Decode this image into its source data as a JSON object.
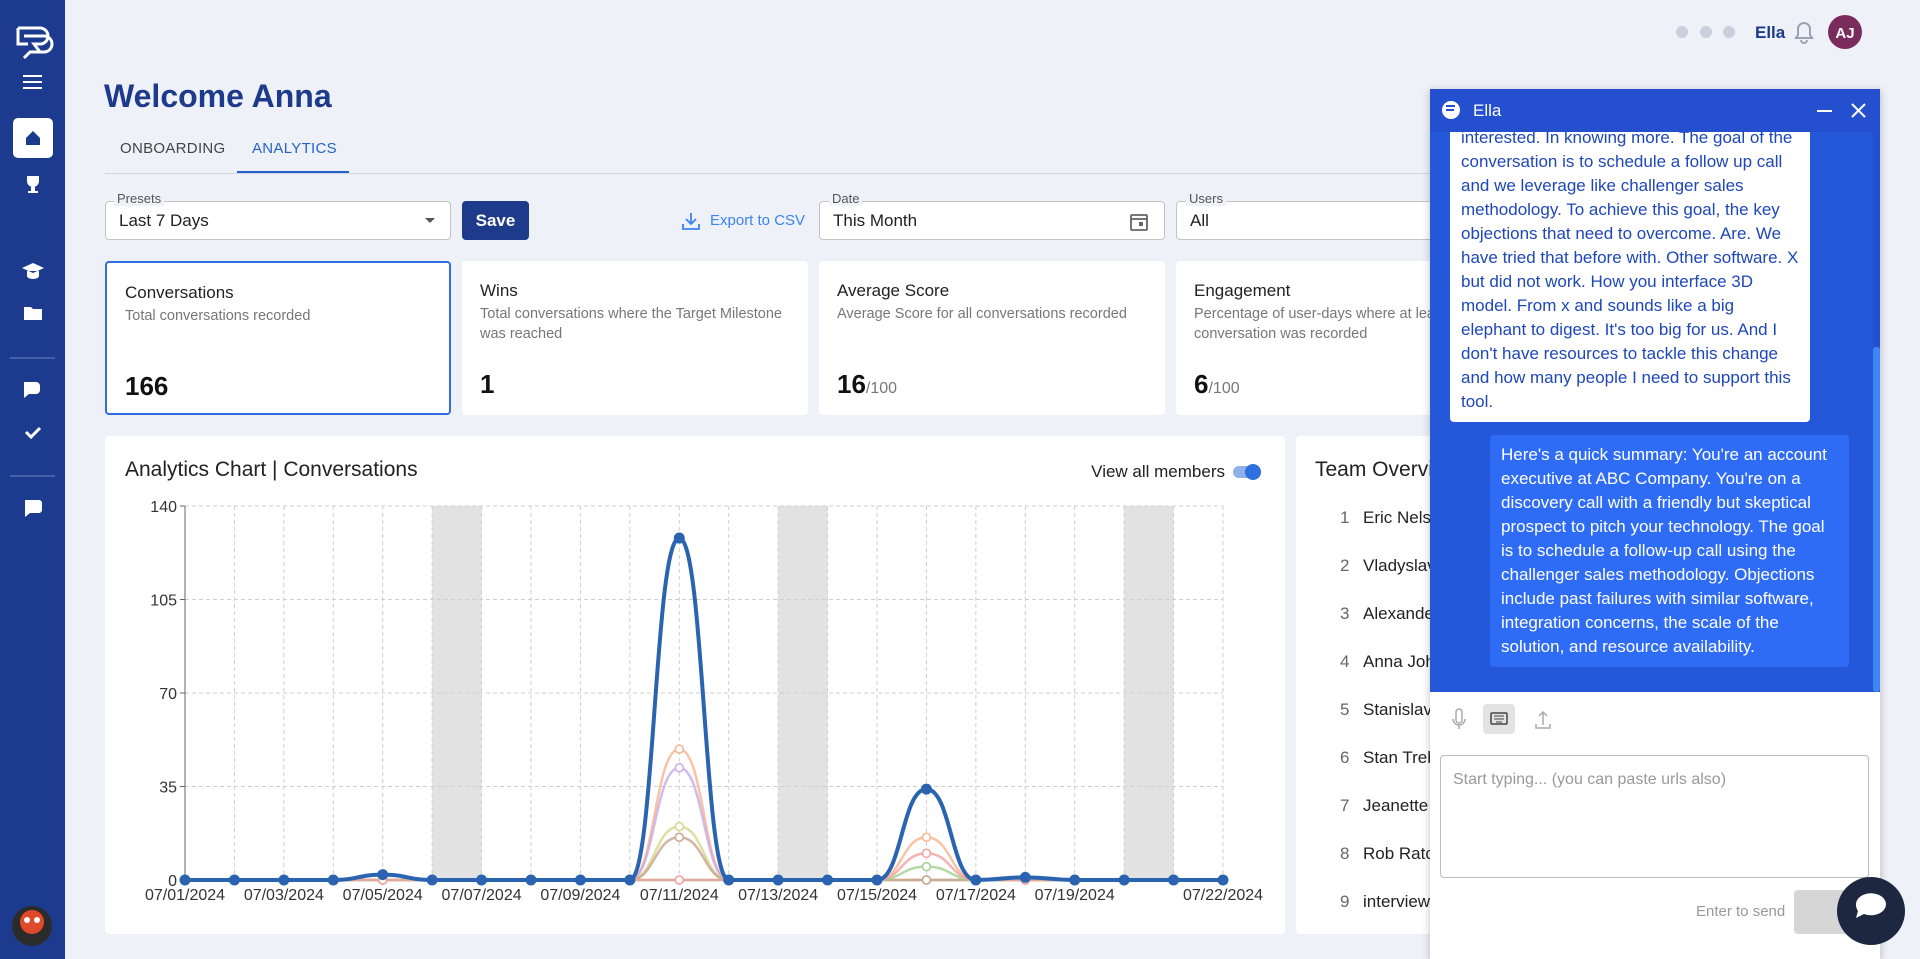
{
  "topbar": {
    "assistant": "Ella",
    "avatar": "AJ"
  },
  "header": {
    "title": "Welcome Anna",
    "tabs": [
      "ONBOARDING",
      "ANALYTICS"
    ]
  },
  "filters": {
    "presets_label": "Presets",
    "presets_value": "Last 7 Days",
    "save": "Save",
    "export": "Export to CSV",
    "date_label": "Date",
    "date_value": "This Month",
    "users_label": "Users",
    "users_value": "All"
  },
  "cards": [
    {
      "title": "Conversations",
      "description": "Total conversations recorded",
      "value": 166
    },
    {
      "title": "Wins",
      "description": "Total conversations where the Target Milestone was reached",
      "value": 1
    },
    {
      "title": "Average Score",
      "description": "Average Score for all conversations recorded",
      "value": 16,
      "suffix": "/100"
    },
    {
      "title": "Engagement",
      "description": "Percentage of user-days where at least one conversation was recorded",
      "value": 6,
      "suffix": "/100"
    }
  ],
  "chart_panel": {
    "toggle": "View all members"
  },
  "chart_data": {
    "type": "line",
    "title": "Analytics Chart | Conversations",
    "x": [
      "07/01/2024",
      "07/02/2024",
      "07/03/2024",
      "07/04/2024",
      "07/05/2024",
      "07/06/2024",
      "07/07/2024",
      "07/08/2024",
      "07/09/2024",
      "07/10/2024",
      "07/11/2024",
      "07/12/2024",
      "07/13/2024",
      "07/14/2024",
      "07/15/2024",
      "07/16/2024",
      "07/17/2024",
      "07/18/2024",
      "07/19/2024",
      "07/20/2024",
      "07/21/2024",
      "07/22/2024"
    ],
    "xlim": [
      "07/01/2024",
      "07/22/2024"
    ],
    "xticks": [
      "07/01/2024",
      "07/03/2024",
      "07/05/2024",
      "07/07/2024",
      "07/09/2024",
      "07/11/2024",
      "07/13/2024",
      "07/15/2024",
      "07/17/2024",
      "07/19/2024",
      "07/22/2024"
    ],
    "ylim": [
      0,
      140
    ],
    "yticks": [
      0,
      35,
      70,
      105,
      140
    ],
    "grid": true,
    "series": [
      {
        "color": "#2a64b0",
        "values": [
          0,
          0,
          0,
          0,
          2,
          0,
          0,
          0,
          0,
          0,
          128,
          0,
          0,
          0,
          0,
          34,
          0,
          1,
          0,
          0,
          0,
          0
        ]
      },
      {
        "color": "#f6b48f",
        "values": [
          0,
          0,
          0,
          0,
          0,
          0,
          0,
          0,
          0,
          0,
          49,
          0,
          0,
          0,
          0,
          16,
          0,
          0,
          0,
          0,
          0,
          0
        ]
      },
      {
        "color": "#c9a9e6",
        "values": [
          0,
          0,
          0,
          0,
          0,
          0,
          0,
          0,
          0,
          0,
          42,
          0,
          0,
          0,
          0,
          0,
          0,
          0,
          0,
          0,
          0,
          0
        ]
      },
      {
        "color": "#d4d68a",
        "values": [
          0,
          0,
          0,
          0,
          0,
          0,
          0,
          0,
          0,
          0,
          20,
          0,
          0,
          0,
          0,
          0,
          0,
          0,
          0,
          0,
          0,
          0
        ]
      },
      {
        "color": "#c8a48c",
        "values": [
          0,
          0,
          0,
          0,
          0,
          0,
          0,
          0,
          0,
          0,
          16,
          0,
          0,
          0,
          0,
          0,
          0,
          0,
          0,
          0,
          0,
          0
        ]
      },
      {
        "color": "#9fcf8e",
        "values": [
          0,
          0,
          0,
          0,
          0,
          0,
          0,
          0,
          0,
          0,
          0,
          0,
          0,
          0,
          0,
          5,
          0,
          0,
          0,
          0,
          0,
          0
        ]
      },
      {
        "color": "#f3a0a0",
        "values": [
          0,
          0,
          0,
          0,
          0,
          0,
          0,
          0,
          0,
          0,
          0,
          0,
          0,
          0,
          0,
          10,
          0,
          0,
          0,
          0,
          0,
          0
        ]
      }
    ]
  },
  "team": {
    "title": "Team Overview",
    "members": [
      {
        "rank": 1,
        "name": "Eric Nelso"
      },
      {
        "rank": 2,
        "name": "Vladyslav"
      },
      {
        "rank": 3,
        "name": "Alexande"
      },
      {
        "rank": 4,
        "name": "Anna Joh"
      },
      {
        "rank": 5,
        "name": "Stanislav"
      },
      {
        "rank": 6,
        "name": "Stan Treb"
      },
      {
        "rank": 7,
        "name": "Jeanette"
      },
      {
        "rank": 8,
        "name": "Rob Ratc"
      },
      {
        "rank": 9,
        "name": "interview"
      }
    ]
  },
  "chat": {
    "title": "Ella",
    "messages": [
      {
        "role": "assistant",
        "text": "prospect who's skeptical but friendly and interested. In knowing more. The goal of the conversation is to schedule a follow up call and we leverage like challenger sales methodology. To achieve this goal, the key objections that need to overcome. Are. We have tried that before with. Other software. X but did not work. How you interface 3D model. From x and sounds like a big elephant to digest. It's too big for us. And I don't have resources to tackle this change and how many people I need to support this tool."
      },
      {
        "role": "user",
        "text": "Here's a quick summary: You're an account executive at ABC Company. You're on a discovery call with a friendly but skeptical prospect to pitch your technology. The goal is to schedule a follow-up call using the challenger sales methodology. Objections include past failures with similar software, integration concerns, the scale of the solution, and resource availability."
      }
    ],
    "placeholder": "Start typing... (you can paste urls also)",
    "hint": "Enter to send"
  }
}
